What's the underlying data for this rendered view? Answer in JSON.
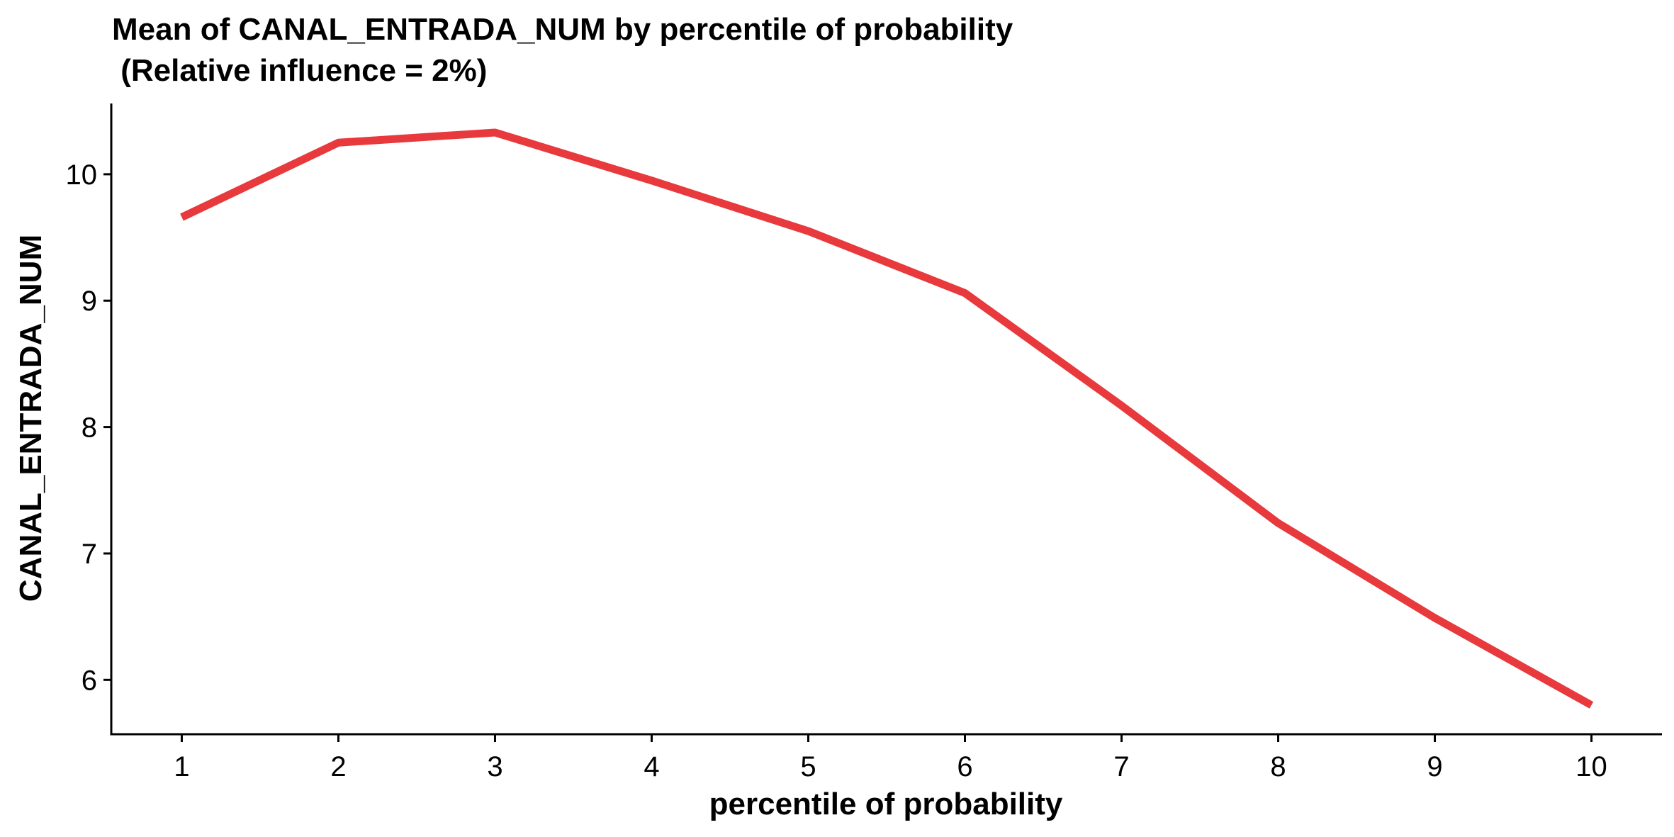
{
  "chart_data": {
    "type": "line",
    "title": "Mean of CANAL_ENTRADA_NUM by percentile of probability",
    "subtitle": " (Relative influence = 2%)",
    "xlabel": "percentile of probability",
    "ylabel": "CANAL_ENTRADA_NUM",
    "x": [
      1,
      2,
      3,
      4,
      5,
      6,
      7,
      8,
      9,
      10
    ],
    "series": [
      {
        "values": [
          9.66,
          10.25,
          10.33,
          9.95,
          9.55,
          9.06,
          8.17,
          7.24,
          6.49,
          5.8
        ]
      }
    ],
    "xticks": [
      "1",
      "2",
      "3",
      "4",
      "5",
      "6",
      "7",
      "8",
      "9",
      "10"
    ],
    "yticks": [
      "6",
      "7",
      "8",
      "9",
      "10"
    ],
    "xlim": [
      0.55,
      10.45
    ],
    "ylim": [
      5.57,
      10.56
    ],
    "line_color": "#E8393C",
    "grid": false,
    "legend": "none"
  }
}
